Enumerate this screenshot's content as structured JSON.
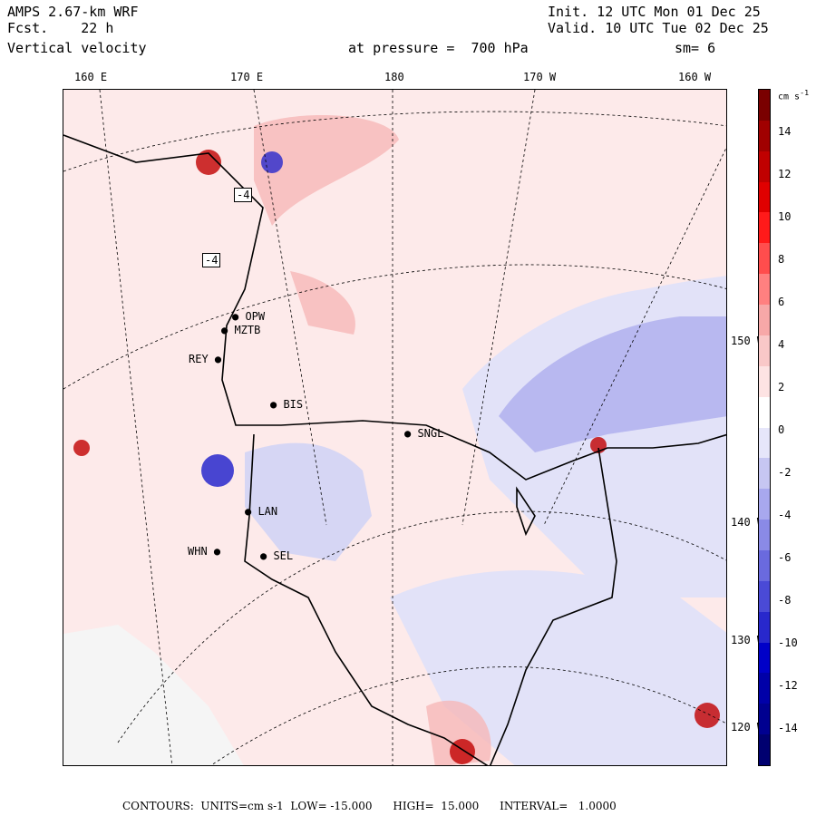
{
  "header": {
    "model": "AMPS 2.67-km WRF",
    "fcst": "Fcst.    22 h",
    "field": "Vertical velocity",
    "init": "Init. 12 UTC Mon 01 Dec 25",
    "valid": "Valid. 10 UTC Tue 02 Dec 25",
    "pressure": "at pressure =  700 hPa",
    "smooth": "sm= 6"
  },
  "longitude_labels": [
    "160 E",
    "170 E",
    "180",
    "170 W",
    "160 W"
  ],
  "latitude_labels": [
    "150 W",
    "140 W",
    "130 W",
    "120 W"
  ],
  "stations": [
    "OPW",
    "MZTB",
    "REY",
    "BIS",
    "SNGL",
    "LAN",
    "WHN",
    "SEL"
  ],
  "contour_boxes": [
    "-4",
    "-4"
  ],
  "colorbar": {
    "units_label": "cm s",
    "units_exp": "-1",
    "tick_labels": [
      "14",
      "12",
      "10",
      "8",
      "6",
      "4",
      "2",
      "0",
      "-2",
      "-4",
      "-6",
      "-8",
      "-10",
      "-12",
      "-14"
    ],
    "colors": [
      "#7a0000",
      "#a00000",
      "#c00000",
      "#e00000",
      "#ff1a1a",
      "#ff4d4d",
      "#ff8080",
      "#f7a8a8",
      "#f9c8c8",
      "#fde3e3",
      "#ffffff",
      "#e6e6fa",
      "#c6c6f2",
      "#a8a8ee",
      "#8a8ae6",
      "#6a6ade",
      "#4a4ad6",
      "#2828cc",
      "#0000c8",
      "#0000a8",
      "#000090",
      "#000070"
    ]
  },
  "footer": "CONTOURS:  UNITS=cm s-1  LOW= -15.000      HIGH=  15.000      INTERVAL=   1.0000",
  "palette": {
    "pos_light": "#fdeaea",
    "pos_mid": "#f6b8b8",
    "neg_light": "#e2e2f8",
    "neg_mid": "#aaaaee",
    "land": "#f2f2f2"
  }
}
